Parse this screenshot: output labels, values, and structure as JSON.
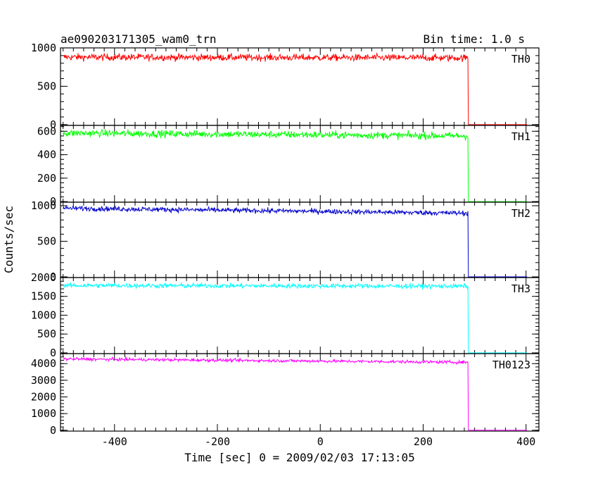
{
  "header": {
    "title": "ae090203171305_wam0_trn",
    "bin_time": "Bin time: 1.0 s"
  },
  "axes": {
    "xlabel": "Time [sec] 0 = 2009/02/03 17:13:05",
    "ylabel": "Counts/sec",
    "xlim": [
      -505,
      425
    ],
    "x_ticks": [
      -400,
      -200,
      0,
      200,
      400
    ]
  },
  "chart_data": [
    {
      "type": "line",
      "name": "TH0",
      "color": "#ff0000",
      "ylim": [
        -10,
        1000
      ],
      "y_ticks": [
        0,
        500,
        1000
      ],
      "x_start": -500,
      "x_drop": 287,
      "x_end": 402,
      "level_start": 880,
      "level_end": 870,
      "noise": 32,
      "level_after": 0,
      "label": "TH0"
    },
    {
      "type": "line",
      "name": "TH1",
      "color": "#00ff00",
      "ylim": [
        -5,
        650
      ],
      "y_ticks": [
        0,
        200,
        400,
        600
      ],
      "x_start": -500,
      "x_drop": 287,
      "x_end": 402,
      "level_start": 585,
      "level_end": 560,
      "noise": 22,
      "level_after": 0,
      "label": "TH1"
    },
    {
      "type": "line",
      "name": "TH2",
      "color": "#0000cc",
      "ylim": [
        -10,
        1050
      ],
      "y_ticks": [
        0,
        500,
        1000
      ],
      "x_start": -500,
      "x_drop": 287,
      "x_end": 402,
      "level_start": 965,
      "level_end": 895,
      "noise": 25,
      "level_after": 0,
      "label": "TH2"
    },
    {
      "type": "line",
      "name": "TH3",
      "color": "#00ffff",
      "ylim": [
        -20,
        2000
      ],
      "y_ticks": [
        0,
        500,
        1000,
        1500,
        2000
      ],
      "x_start": -500,
      "x_drop": 287,
      "x_end": 402,
      "level_start": 1790,
      "level_end": 1770,
      "noise": 45,
      "level_after": 0,
      "label": "TH3"
    },
    {
      "type": "line",
      "name": "TH0123",
      "color": "#ff00ff",
      "ylim": [
        -50,
        4600
      ],
      "y_ticks": [
        0,
        1000,
        2000,
        3000,
        4000
      ],
      "x_start": -500,
      "x_drop": 287,
      "x_end": 402,
      "level_start": 4280,
      "level_end": 4080,
      "noise": 65,
      "level_after": 0,
      "label": "TH0123"
    }
  ]
}
